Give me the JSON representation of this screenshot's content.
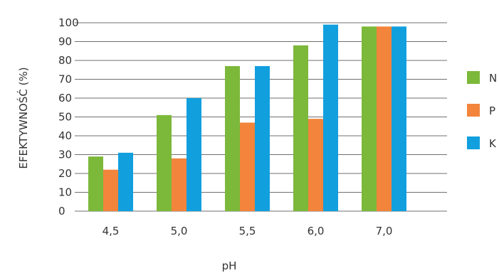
{
  "chart_data": {
    "type": "bar",
    "title": "",
    "xlabel": "pH",
    "ylabel": "EFEKTYWNOŚĆ (%)",
    "categories": [
      "4,5",
      "5,0",
      "5,5",
      "6,0",
      "7,0"
    ],
    "ylim": [
      0,
      100
    ],
    "yticks": [
      0,
      10,
      20,
      30,
      40,
      50,
      60,
      70,
      80,
      90,
      100
    ],
    "grid": true,
    "legend_position": "right",
    "series": [
      {
        "name": "N",
        "color": "#7cb83a",
        "values": [
          29,
          51,
          77,
          88,
          98
        ]
      },
      {
        "name": "P",
        "color": "#f2843c",
        "values": [
          22,
          28,
          47,
          49,
          98
        ]
      },
      {
        "name": "K",
        "color": "#119fdd",
        "values": [
          31,
          60,
          77,
          99,
          98
        ]
      }
    ]
  }
}
